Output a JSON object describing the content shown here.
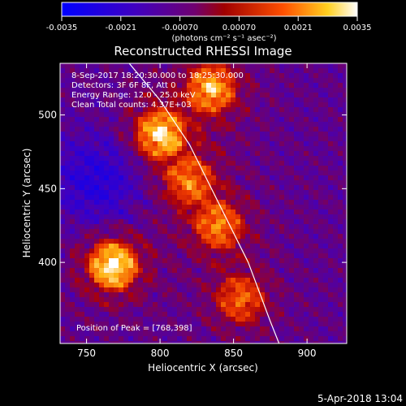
{
  "colorbar": {
    "ticks": [
      "-0.0035",
      "-0.0021",
      "-0.00070",
      "0.00070",
      "0.0021",
      "0.0035"
    ],
    "unit_label": "(photons cm⁻² s⁻¹ asec⁻²)"
  },
  "chart_data": {
    "type": "heatmap",
    "title": "Reconstructed RHESSI Image",
    "xlabel": "Heliocentric X (arcsec)",
    "ylabel": "Heliocentric Y (arcsec)",
    "xlim": [
      732,
      927
    ],
    "ylim": [
      345,
      535
    ],
    "x_ticks": [
      750,
      800,
      850,
      900
    ],
    "y_ticks": [
      400,
      450,
      500
    ],
    "x_tick_labels": [
      "750",
      "800",
      "850",
      "900"
    ],
    "y_tick_labels": [
      "400",
      "450",
      "500"
    ],
    "colormap_range": [
      -0.0035,
      0.0035
    ],
    "annotations": {
      "time": "8-Sep-2017 18:20:30.000 to 18:25:30.000",
      "detectors": "Detectors: 3F 6F 8F, Att 0",
      "energy": "Energy Range: 12.0 - 25.0 keV",
      "clean": "Clean    Total counts: 4.37E+03",
      "peak": "Position of Peak = [768,398]"
    },
    "peak_position": [
      768,
      398
    ],
    "limb_curve": [
      [
        779,
        535
      ],
      [
        800,
        510
      ],
      [
        820,
        480
      ],
      [
        840,
        440
      ],
      [
        860,
        400
      ],
      [
        875,
        360
      ],
      [
        881,
        345
      ]
    ],
    "sources": [
      {
        "x": 768,
        "y": 398,
        "intensity": 1.0
      },
      {
        "x": 800,
        "y": 487,
        "intensity": 0.9
      },
      {
        "x": 835,
        "y": 518,
        "intensity": 0.8
      },
      {
        "x": 820,
        "y": 455,
        "intensity": 0.6
      },
      {
        "x": 840,
        "y": 425,
        "intensity": 0.65
      },
      {
        "x": 855,
        "y": 375,
        "intensity": 0.6
      }
    ]
  },
  "footer": {
    "timestamp": "5-Apr-2018 13:04"
  }
}
